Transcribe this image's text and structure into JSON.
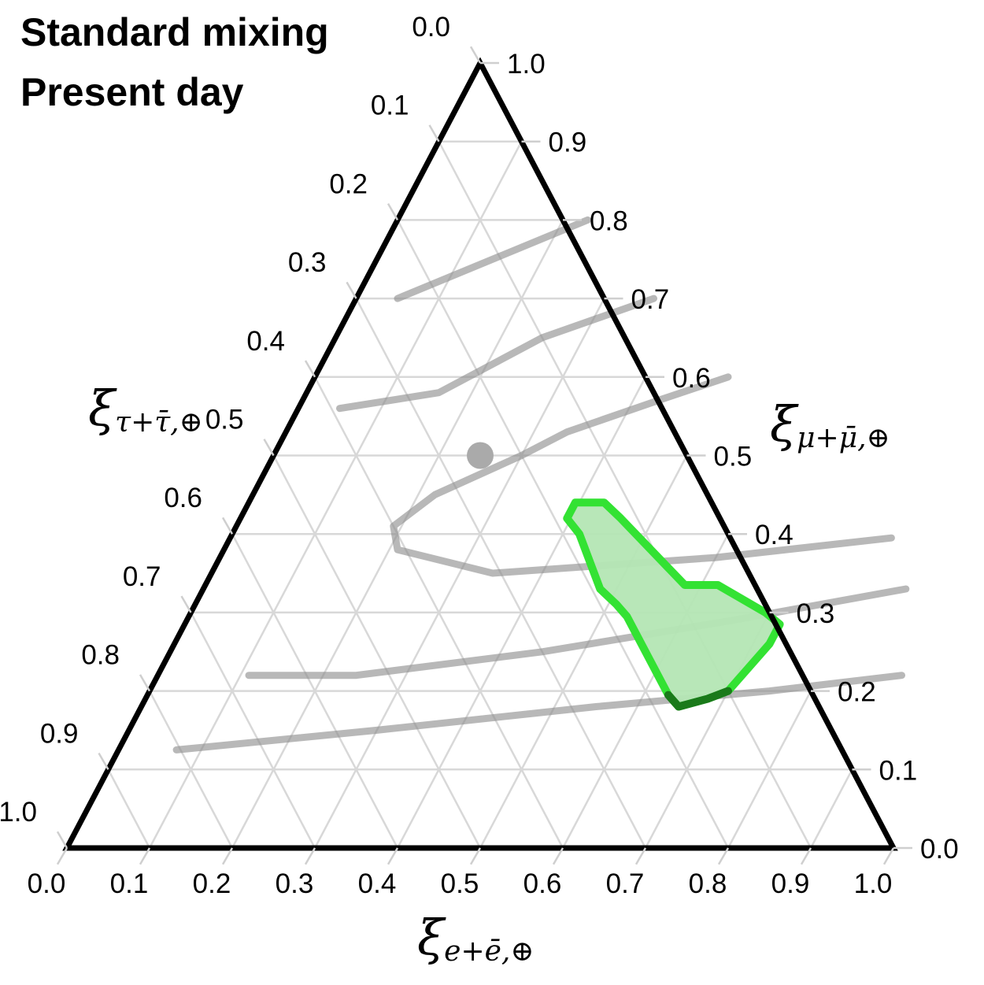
{
  "title_lines": [
    "Standard mixing",
    "Present day"
  ],
  "colors": {
    "frame": "#000000",
    "grid": "#d8d8d8",
    "gray_contour": "#8c8c8c",
    "region_fill": "#b4e6b4",
    "region_edge": "#33e233",
    "region_edge_dark": "#1a7a1a",
    "point": "#aaaaaa"
  },
  "chart_data": {
    "type": "ternary",
    "axes": {
      "bottom": {
        "symbol": "ξ",
        "subscript": "e+ē,⊕",
        "ticks": [
          "0.0",
          "0.1",
          "0.2",
          "0.3",
          "0.4",
          "0.5",
          "0.6",
          "0.7",
          "0.8",
          "0.9",
          "1.0"
        ]
      },
      "right": {
        "symbol": "ξ",
        "subscript": "μ+μ̄,⊕",
        "ticks": [
          "0.0",
          "0.1",
          "0.2",
          "0.3",
          "0.4",
          "0.5",
          "0.6",
          "0.7",
          "0.8",
          "0.9",
          "1.0"
        ]
      },
      "left": {
        "symbol": "ξ",
        "subscript": "τ+τ̄,⊕",
        "ticks": [
          "0.0",
          "0.1",
          "0.2",
          "0.3",
          "0.4",
          "0.5",
          "0.6",
          "0.7",
          "0.8",
          "0.9",
          "1.0"
        ]
      }
    },
    "gridlines": true,
    "point": {
      "e": 0.25,
      "mu": 0.5,
      "tau": 0.25
    },
    "contours_gray": [
      [
        {
          "e": 0.23,
          "mu": 0.8
        },
        {
          "e": 0.05,
          "mu": 0.7
        }
      ],
      [
        {
          "e": 0.36,
          "mu": 0.7
        },
        {
          "e": 0.25,
          "mu": 0.65
        },
        {
          "e": 0.16,
          "mu": 0.58
        },
        {
          "e": 0.05,
          "mu": 0.56
        }
      ],
      [
        {
          "e": 0.5,
          "mu": 0.6
        },
        {
          "e": 0.43,
          "mu": 0.57
        },
        {
          "e": 0.34,
          "mu": 0.53
        },
        {
          "e": 0.3,
          "mu": 0.5
        },
        {
          "e": 0.22,
          "mu": 0.45
        },
        {
          "e": 0.19,
          "mu": 0.41
        },
        {
          "e": 0.21,
          "mu": 0.38
        },
        {
          "e": 0.34,
          "mu": 0.35
        },
        {
          "e": 0.6,
          "mu": 0.37
        },
        {
          "e": 0.8,
          "mu": 0.395
        }
      ],
      [
        {
          "e": 0.11,
          "mu": 0.22
        },
        {
          "e": 0.24,
          "mu": 0.22
        },
        {
          "e": 0.45,
          "mu": 0.25
        },
        {
          "e": 0.66,
          "mu": 0.29
        },
        {
          "e": 0.85,
          "mu": 0.33
        }
      ],
      [
        {
          "e": 0.07,
          "mu": 0.125
        },
        {
          "e": 0.3,
          "mu": 0.15
        },
        {
          "e": 0.55,
          "mu": 0.18
        },
        {
          "e": 0.75,
          "mu": 0.2
        },
        {
          "e": 0.9,
          "mu": 0.22
        }
      ]
    ],
    "region_green": [
      {
        "e": 0.395,
        "mu": 0.44
      },
      {
        "e": 0.43,
        "mu": 0.44
      },
      {
        "e": 0.46,
        "mu": 0.42
      },
      {
        "e": 0.58,
        "mu": 0.335
      },
      {
        "e": 0.62,
        "mu": 0.335
      },
      {
        "e": 0.695,
        "mu": 0.3
      },
      {
        "e": 0.72,
        "mu": 0.285
      },
      {
        "e": 0.72,
        "mu": 0.26
      },
      {
        "e": 0.7,
        "mu": 0.2
      },
      {
        "e": 0.68,
        "mu": 0.19
      },
      {
        "e": 0.65,
        "mu": 0.18
      },
      {
        "e": 0.63,
        "mu": 0.195
      },
      {
        "e": 0.53,
        "mu": 0.295
      },
      {
        "e": 0.51,
        "mu": 0.31
      },
      {
        "e": 0.48,
        "mu": 0.33
      },
      {
        "e": 0.42,
        "mu": 0.4
      },
      {
        "e": 0.395,
        "mu": 0.42
      }
    ],
    "region_dark_tip": [
      {
        "e": 0.7,
        "mu": 0.2
      },
      {
        "e": 0.68,
        "mu": 0.19
      },
      {
        "e": 0.65,
        "mu": 0.18
      },
      {
        "e": 0.63,
        "mu": 0.195
      }
    ]
  }
}
